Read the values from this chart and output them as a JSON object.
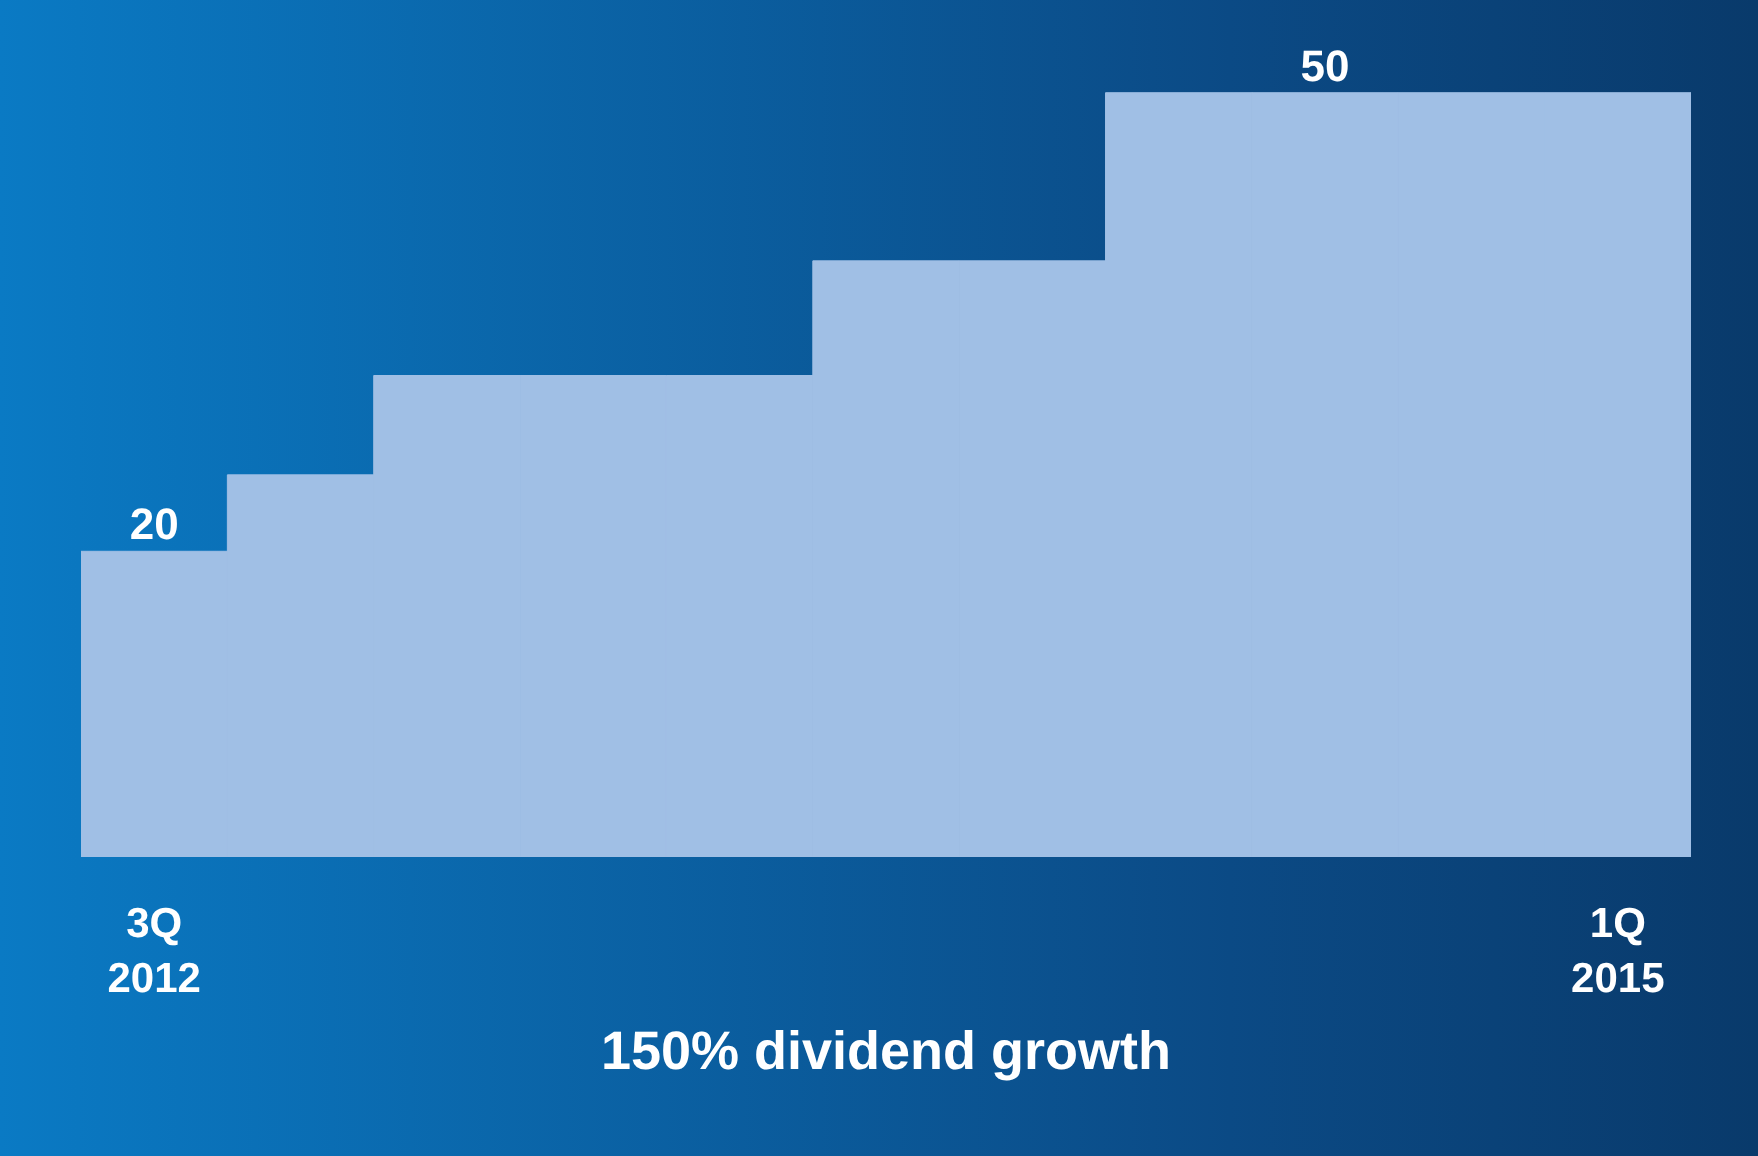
{
  "chart_data": {
    "type": "bar",
    "title": "150% dividend growth",
    "categories": [
      "3Q\n2012",
      null,
      null,
      null,
      null,
      null,
      null,
      null,
      null,
      null,
      "1Q\n2015"
    ],
    "values": [
      20,
      25,
      31.5,
      31.5,
      31.5,
      39,
      39,
      50,
      50,
      50,
      50
    ],
    "value_labels": [
      "20",
      null,
      null,
      null,
      null,
      null,
      null,
      null,
      "50",
      null,
      null
    ],
    "color": "#a0bfe5",
    "ylim": [
      0,
      56
    ],
    "tick_labels": "x",
    "grid": false
  }
}
